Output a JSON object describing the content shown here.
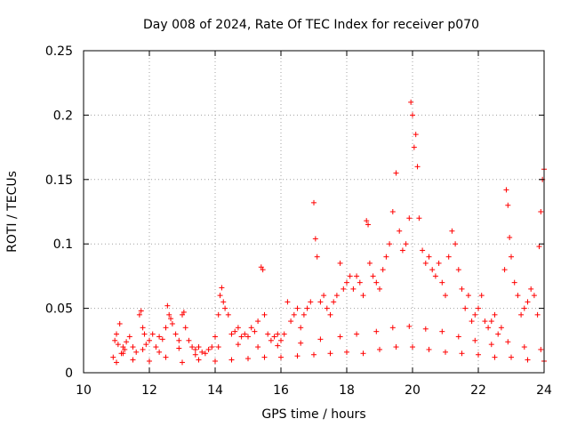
{
  "chart_data": {
    "type": "scatter",
    "title": "Day 008 of 2024, Rate Of TEC Index for receiver p070",
    "xlabel": "GPS time / hours",
    "ylabel": "ROTI / TECUs",
    "xlim": [
      10,
      24
    ],
    "ylim": [
      0,
      0.25
    ],
    "xticks": [
      "10",
      "12",
      "14",
      "16",
      "18",
      "20",
      "22",
      "24"
    ],
    "yticks": [
      "0",
      "0.05",
      "0.1",
      "0.15",
      "0.2",
      "0.25"
    ],
    "grid": true,
    "marker": "+",
    "series_color": "#ff0000",
    "series": [
      {
        "name": "ROTI",
        "x": [
          10.9,
          10.95,
          11.0,
          11.05,
          11.1,
          11.15,
          11.2,
          11.25,
          11.3,
          11.4,
          11.5,
          11.6,
          11.7,
          11.75,
          11.8,
          11.85,
          11.9,
          12.0,
          12.1,
          12.2,
          12.3,
          12.4,
          12.5,
          12.55,
          12.6,
          12.65,
          12.7,
          12.8,
          12.9,
          13.0,
          13.05,
          13.1,
          13.2,
          13.3,
          13.4,
          13.5,
          13.6,
          13.7,
          13.8,
          13.9,
          14.0,
          14.1,
          14.15,
          14.2,
          14.25,
          14.3,
          14.4,
          14.5,
          14.6,
          14.7,
          14.8,
          14.9,
          15.0,
          15.1,
          15.2,
          15.3,
          15.4,
          15.45,
          15.5,
          15.6,
          15.7,
          15.8,
          15.9,
          16.0,
          16.1,
          16.2,
          16.3,
          16.4,
          16.5,
          16.6,
          16.7,
          16.8,
          16.9,
          17.0,
          17.05,
          17.1,
          17.2,
          17.3,
          17.4,
          17.5,
          17.6,
          17.7,
          17.8,
          17.9,
          18.0,
          18.1,
          18.2,
          18.3,
          18.4,
          18.5,
          18.6,
          18.65,
          18.7,
          18.8,
          18.9,
          19.0,
          19.1,
          19.2,
          19.3,
          19.4,
          19.5,
          19.6,
          19.7,
          19.8,
          19.9,
          19.95,
          20.0,
          20.05,
          20.1,
          20.15,
          20.2,
          20.3,
          20.4,
          20.5,
          20.6,
          20.7,
          20.8,
          20.9,
          21.0,
          21.1,
          21.2,
          21.3,
          21.4,
          21.5,
          21.6,
          21.7,
          21.8,
          21.9,
          22.0,
          22.1,
          22.2,
          22.3,
          22.4,
          22.5,
          22.6,
          22.7,
          22.8,
          22.85,
          22.9,
          22.95,
          23.0,
          23.1,
          23.2,
          23.3,
          23.4,
          23.5,
          23.6,
          23.7,
          23.8,
          23.85,
          23.9,
          23.95,
          24.0,
          11.0,
          11.5,
          12.0,
          12.5,
          13.0,
          13.5,
          14.0,
          14.5,
          15.0,
          15.5,
          16.0,
          16.5,
          17.0,
          17.5,
          18.0,
          18.5,
          19.0,
          19.5,
          20.0,
          20.5,
          21.0,
          21.5,
          22.0,
          22.5,
          23.0,
          23.5,
          24.0,
          11.2,
          11.8,
          12.3,
          12.9,
          13.4,
          14.1,
          14.7,
          15.3,
          15.9,
          16.6,
          17.2,
          17.8,
          18.3,
          18.9,
          19.4,
          19.9,
          20.4,
          20.9,
          21.4,
          21.9,
          22.4,
          22.9,
          23.4,
          23.9
        ],
        "y": [
          0.012,
          0.025,
          0.03,
          0.022,
          0.038,
          0.015,
          0.02,
          0.018,
          0.024,
          0.028,
          0.02,
          0.016,
          0.045,
          0.048,
          0.035,
          0.03,
          0.022,
          0.025,
          0.03,
          0.02,
          0.028,
          0.026,
          0.035,
          0.052,
          0.045,
          0.042,
          0.038,
          0.03,
          0.025,
          0.045,
          0.047,
          0.035,
          0.025,
          0.02,
          0.018,
          0.02,
          0.016,
          0.015,
          0.018,
          0.02,
          0.028,
          0.045,
          0.06,
          0.066,
          0.055,
          0.05,
          0.045,
          0.03,
          0.032,
          0.035,
          0.028,
          0.03,
          0.028,
          0.035,
          0.032,
          0.04,
          0.082,
          0.08,
          0.045,
          0.03,
          0.025,
          0.028,
          0.03,
          0.025,
          0.03,
          0.055,
          0.04,
          0.045,
          0.05,
          0.035,
          0.045,
          0.05,
          0.055,
          0.132,
          0.104,
          0.09,
          0.055,
          0.06,
          0.05,
          0.045,
          0.055,
          0.06,
          0.085,
          0.065,
          0.07,
          0.075,
          0.065,
          0.075,
          0.07,
          0.06,
          0.118,
          0.115,
          0.085,
          0.075,
          0.07,
          0.065,
          0.08,
          0.09,
          0.1,
          0.125,
          0.155,
          0.11,
          0.095,
          0.1,
          0.12,
          0.21,
          0.2,
          0.175,
          0.185,
          0.16,
          0.12,
          0.095,
          0.085,
          0.09,
          0.08,
          0.075,
          0.085,
          0.07,
          0.06,
          0.09,
          0.11,
          0.1,
          0.08,
          0.065,
          0.05,
          0.06,
          0.04,
          0.045,
          0.05,
          0.06,
          0.04,
          0.035,
          0.04,
          0.045,
          0.03,
          0.035,
          0.08,
          0.142,
          0.13,
          0.105,
          0.09,
          0.07,
          0.06,
          0.045,
          0.05,
          0.055,
          0.065,
          0.06,
          0.045,
          0.098,
          0.125,
          0.15,
          0.158,
          0.008,
          0.01,
          0.009,
          0.012,
          0.008,
          0.01,
          0.009,
          0.01,
          0.011,
          0.012,
          0.012,
          0.013,
          0.014,
          0.015,
          0.016,
          0.015,
          0.018,
          0.02,
          0.02,
          0.018,
          0.016,
          0.015,
          0.014,
          0.012,
          0.012,
          0.01,
          0.009,
          0.015,
          0.018,
          0.016,
          0.019,
          0.014,
          0.02,
          0.022,
          0.02,
          0.021,
          0.023,
          0.026,
          0.028,
          0.03,
          0.032,
          0.035,
          0.036,
          0.034,
          0.032,
          0.028,
          0.025,
          0.022,
          0.024,
          0.02,
          0.018
        ]
      }
    ]
  }
}
